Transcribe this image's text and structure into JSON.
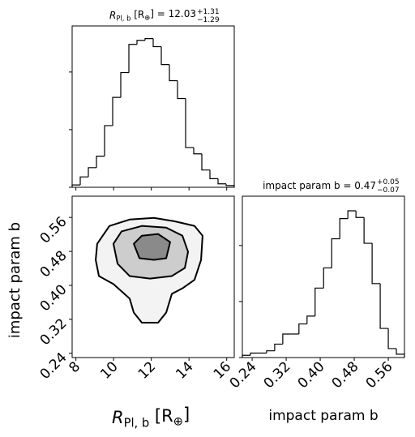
{
  "chart_data": [
    {
      "type": "histogram",
      "title": [
        "R",
        "Pl, b",
        " [R",
        "⊕",
        "] = 12.03",
        "+1.31",
        "−1.29"
      ],
      "bins": [
        7.8,
        8.23,
        8.66,
        9.09,
        9.52,
        9.95,
        10.38,
        10.81,
        11.24,
        11.67,
        12.1,
        12.53,
        12.96,
        13.39,
        13.82,
        14.25,
        14.68,
        15.11,
        15.54,
        15.97,
        16.4
      ],
      "values": [
        0.004,
        0.018,
        0.034,
        0.054,
        0.107,
        0.156,
        0.199,
        0.248,
        0.255,
        0.258,
        0.244,
        0.213,
        0.185,
        0.154,
        0.069,
        0.058,
        0.03,
        0.015,
        0.006,
        0.003
      ],
      "xlim": [
        7.8,
        16.4
      ],
      "xticks": [
        8,
        10,
        12,
        14,
        16
      ],
      "ylim": [
        0,
        0.28
      ],
      "yticks": [
        0,
        0.1,
        0.2
      ],
      "color": "#000000"
    },
    {
      "type": "contour",
      "xlabel": [
        "R",
        "Pl, b",
        " [R",
        "⊕",
        "]"
      ],
      "ylabel": "impact param b",
      "xlim": [
        7.8,
        16.4
      ],
      "xticks": [
        8,
        10,
        12,
        14,
        16
      ],
      "ylim": [
        0.23,
        0.61
      ],
      "yticks": [
        0.24,
        0.32,
        {
          "value": 0.4,
          "label": "0.40"
        },
        0.48,
        0.56
      ],
      "contours": [
        {
          "fill": "#f3f3f3",
          "color": "#000000",
          "x": [
            9.13,
            9.78,
            10.85,
            12.14,
            13.22,
            14.29,
            14.72,
            14.64,
            14.29,
            13.65,
            13.09,
            12.79,
            12.36,
            11.5,
            11.07,
            10.85,
            9.99,
            9.22,
            9.05
          ],
          "y": [
            0.498,
            0.54,
            0.555,
            0.559,
            0.551,
            0.54,
            0.517,
            0.46,
            0.413,
            0.393,
            0.38,
            0.336,
            0.312,
            0.312,
            0.336,
            0.369,
            0.403,
            0.422,
            0.46
          ]
        },
        {
          "fill": "#cdcdcd",
          "color": "#000000",
          "x": [
            9.99,
            10.42,
            11.5,
            12.79,
            13.65,
            13.95,
            13.78,
            13.09,
            11.93,
            10.85,
            10.21
          ],
          "y": [
            0.498,
            0.527,
            0.54,
            0.536,
            0.517,
            0.479,
            0.441,
            0.422,
            0.416,
            0.422,
            0.451
          ]
        },
        {
          "fill": "#8a8a8a",
          "color": "#000000",
          "x": [
            11.07,
            11.5,
            12.36,
            13.0,
            12.79,
            12.14,
            11.37
          ],
          "y": [
            0.498,
            0.517,
            0.521,
            0.502,
            0.464,
            0.46,
            0.464
          ]
        }
      ]
    },
    {
      "type": "histogram",
      "title": [
        "impact param b = 0.47",
        "+0.05",
        "−0.07"
      ],
      "xlabel": "impact param b",
      "bins": [
        0.217,
        0.236,
        0.255,
        0.274,
        0.293,
        0.312,
        0.331,
        0.35,
        0.369,
        0.388,
        0.408,
        0.427,
        0.446,
        0.465,
        0.484,
        0.503,
        0.522,
        0.541,
        0.56,
        0.579,
        0.598
      ],
      "values": [
        0.2,
        0.4,
        0.4,
        0.6,
        1.2,
        2.1,
        2.1,
        3.0,
        3.7,
        6.2,
        8.0,
        10.6,
        12.4,
        13.1,
        12.5,
        10.2,
        6.6,
        2.6,
        0.8,
        0.3
      ],
      "xlim": [
        0.217,
        0.598
      ],
      "xticks": [
        0.24,
        0.32,
        {
          "value": 0.4,
          "label": "0.40"
        },
        0.48,
        0.56
      ],
      "ylim": [
        0,
        14.4
      ],
      "yticks": [
        0,
        5,
        10
      ],
      "color": "#000000"
    }
  ]
}
